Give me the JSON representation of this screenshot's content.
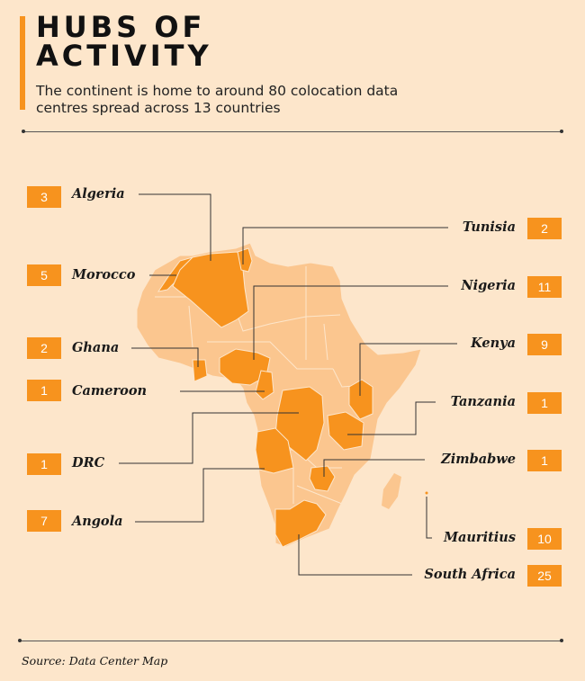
{
  "header": {
    "title_line1": "HUBS OF",
    "title_line2": "ACTIVITY",
    "subtitle": "The continent is home to around 80 colocation data centres spread across 13 countries"
  },
  "colors": {
    "background": "#fde6cb",
    "highlight": "#f7931e",
    "land": "#fbc68f",
    "border": "#fde6cb"
  },
  "countries": [
    {
      "name": "Algeria",
      "count": "3"
    },
    {
      "name": "Morocco",
      "count": "5"
    },
    {
      "name": "Ghana",
      "count": "2"
    },
    {
      "name": "Cameroon",
      "count": "1"
    },
    {
      "name": "DRC",
      "count": "1"
    },
    {
      "name": "Angola",
      "count": "7"
    },
    {
      "name": "Tunisia",
      "count": "2"
    },
    {
      "name": "Nigeria",
      "count": "11"
    },
    {
      "name": "Kenya",
      "count": "9"
    },
    {
      "name": "Tanzania",
      "count": "1"
    },
    {
      "name": "Zimbabwe",
      "count": "1"
    },
    {
      "name": "Mauritius",
      "count": "10"
    },
    {
      "name": "South Africa",
      "count": "25"
    }
  ],
  "source": "Source: Data Center Map"
}
